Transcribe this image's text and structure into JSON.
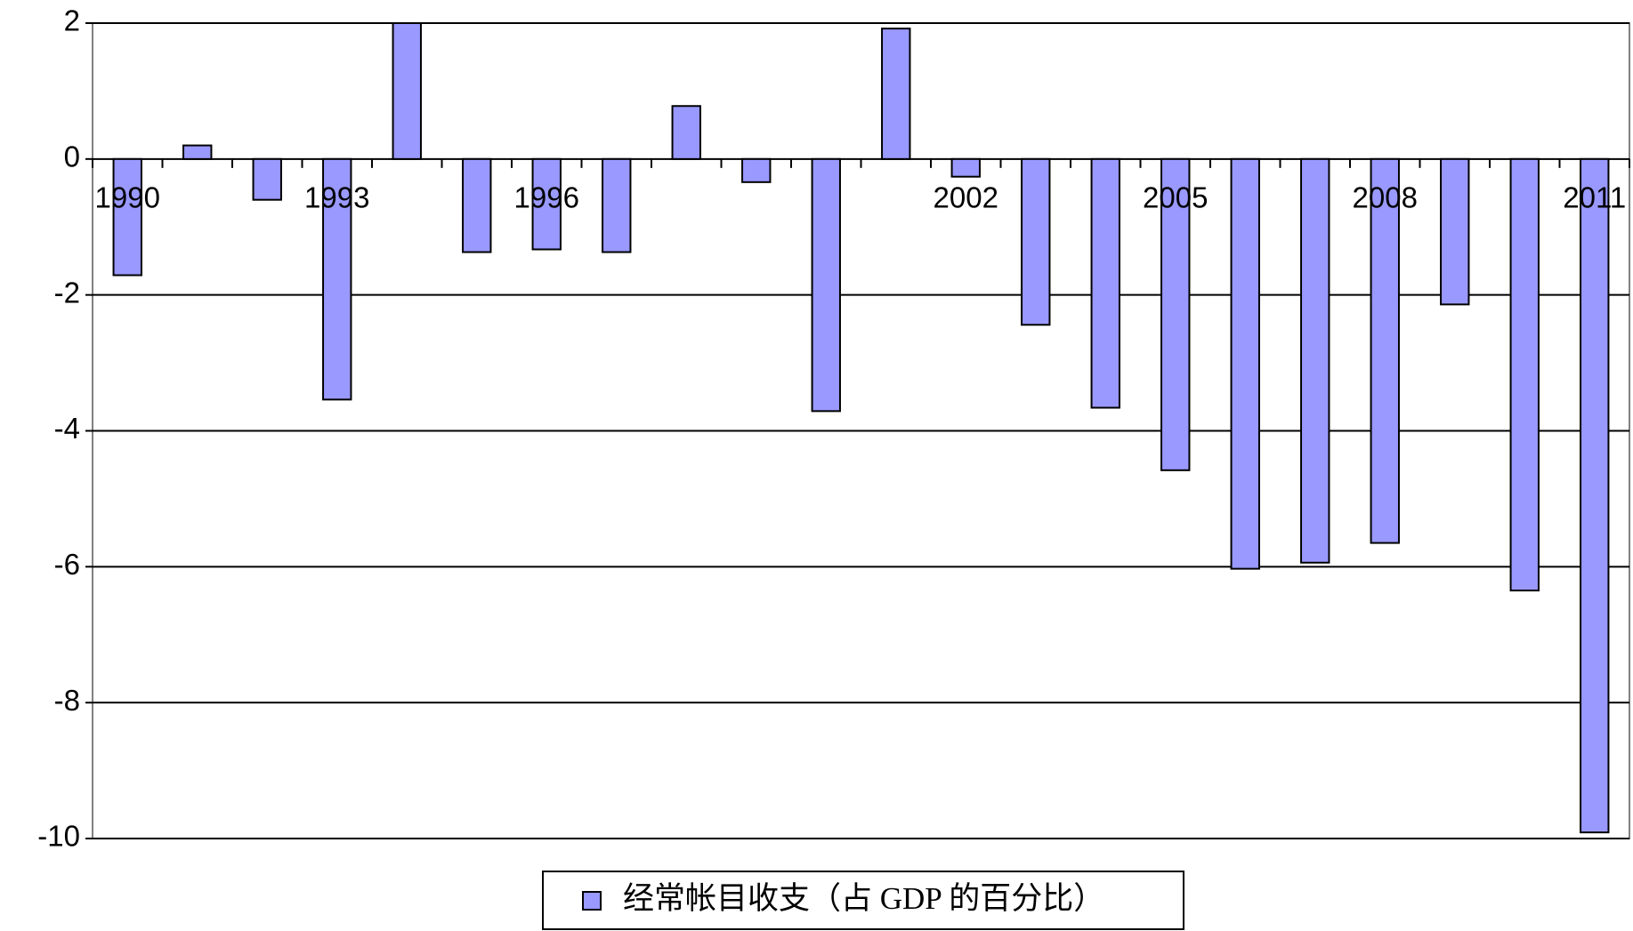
{
  "chart_data": {
    "type": "bar",
    "categories": [
      "1990",
      null,
      null,
      "1993",
      null,
      null,
      "1996",
      null,
      null,
      null,
      null,
      null,
      "2002",
      null,
      null,
      "2005",
      null,
      null,
      "2008",
      null,
      null,
      "2011"
    ],
    "series": [
      {
        "name": "经常帐目收支（占 GDP 的百分比）",
        "color": "#9999ff",
        "values": [
          -1.71,
          0.2,
          -0.6,
          -3.54,
          2.0,
          -1.37,
          -1.33,
          -1.37,
          0.78,
          -0.34,
          -3.71,
          1.92,
          -0.26,
          -2.44,
          -3.66,
          -4.58,
          -6.03,
          -5.94,
          -5.65,
          -2.14,
          -6.35,
          -9.91
        ]
      }
    ],
    "ylim": [
      -10,
      2
    ],
    "yticks": [
      -10,
      -8,
      -6,
      -4,
      -2,
      0,
      2
    ],
    "grid": true
  }
}
